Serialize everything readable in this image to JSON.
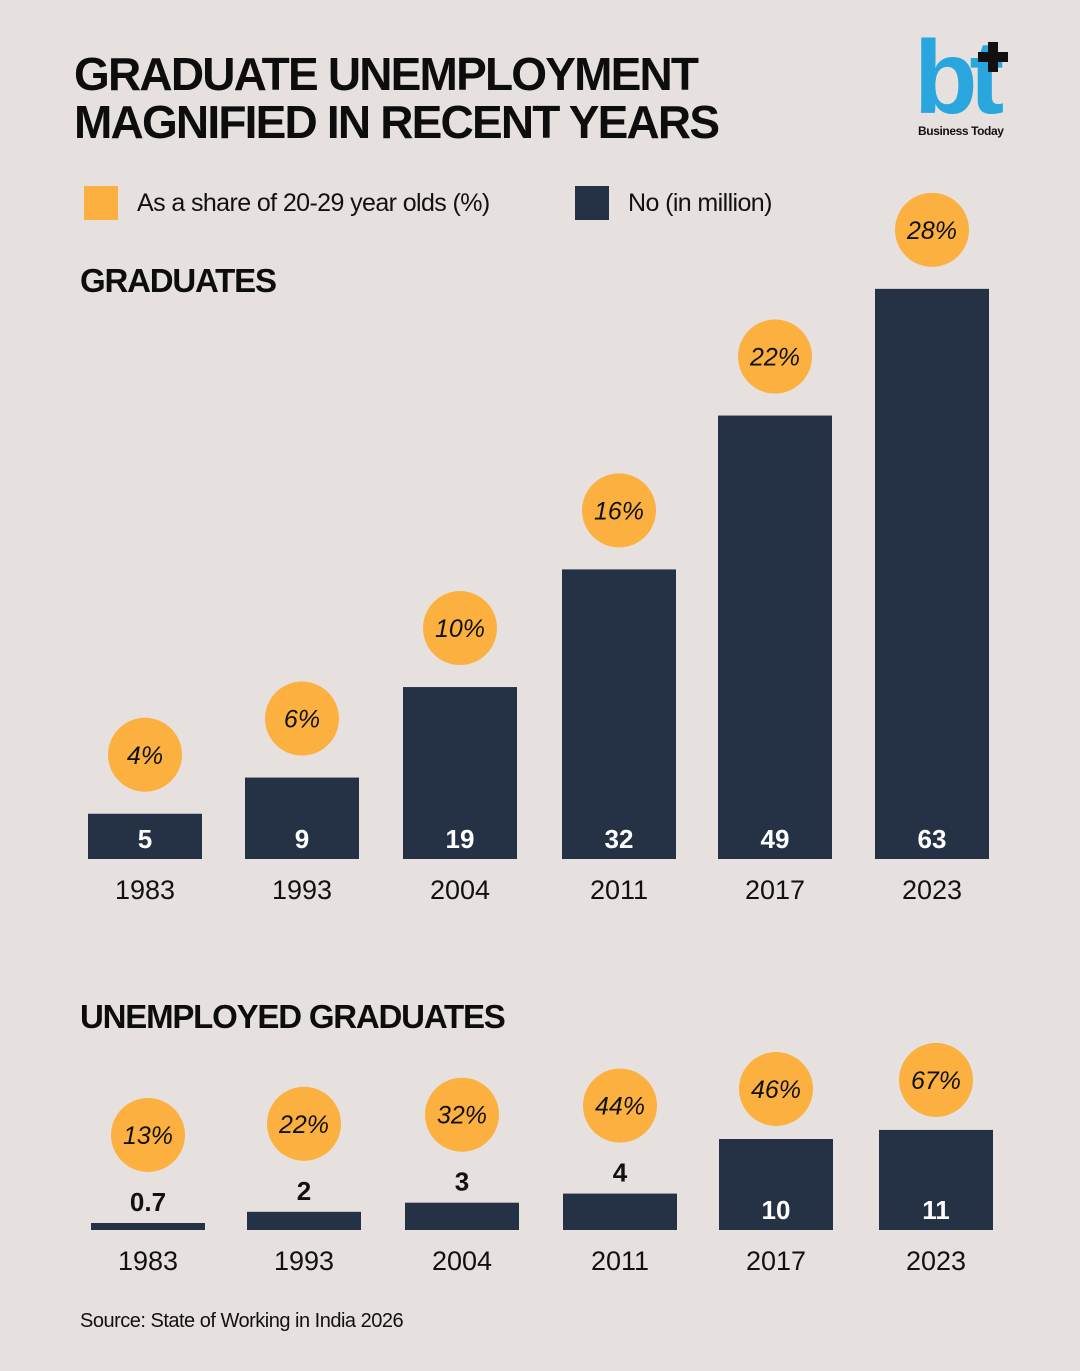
{
  "title_lines": [
    "GRADUATE UNEMPLOYMENT",
    "MAGNIFIED IN RECENT YEARS"
  ],
  "logo": {
    "mark": "bt",
    "text": "Business Today",
    "color": "#2aa6df"
  },
  "colors": {
    "background": "#e6e1df",
    "bar": "#253246",
    "bubble": "#fbb040",
    "text": "#111111"
  },
  "legend": [
    {
      "label": "As a share of 20-29 year olds (%)",
      "color": "#fbb040"
    },
    {
      "label": "No (in million)",
      "color": "#253246"
    }
  ],
  "source": "Source: State of Working in India 2026",
  "chart_data": [
    {
      "type": "bar",
      "title": "GRADUATES",
      "categories": [
        "1983",
        "1993",
        "2004",
        "2011",
        "2017",
        "2023"
      ],
      "series": [
        {
          "name": "No (in million)",
          "values": [
            5,
            9,
            19,
            32,
            49,
            63
          ],
          "labels": [
            "5",
            "9",
            "19",
            "32",
            "49",
            "63"
          ]
        },
        {
          "name": "As a share of 20-29 year olds (%)",
          "values": [
            4,
            6,
            10,
            16,
            22,
            28
          ],
          "labels": [
            "4%",
            "6%",
            "10%",
            "16%",
            "22%",
            "28%"
          ]
        }
      ]
    },
    {
      "type": "bar",
      "title": "UNEMPLOYED GRADUATES",
      "categories": [
        "1983",
        "1993",
        "2004",
        "2011",
        "2017",
        "2023"
      ],
      "series": [
        {
          "name": "No (in million)",
          "values": [
            0.7,
            2,
            3,
            4,
            10,
            11
          ],
          "labels": [
            "0.7",
            "2",
            "3",
            "4",
            "10",
            "11"
          ]
        },
        {
          "name": "As a share of 20-29 year olds (%)",
          "values": [
            13,
            22,
            32,
            44,
            46,
            67
          ],
          "labels": [
            "13%",
            "22%",
            "32%",
            "44%",
            "46%",
            "67%"
          ]
        }
      ]
    }
  ]
}
